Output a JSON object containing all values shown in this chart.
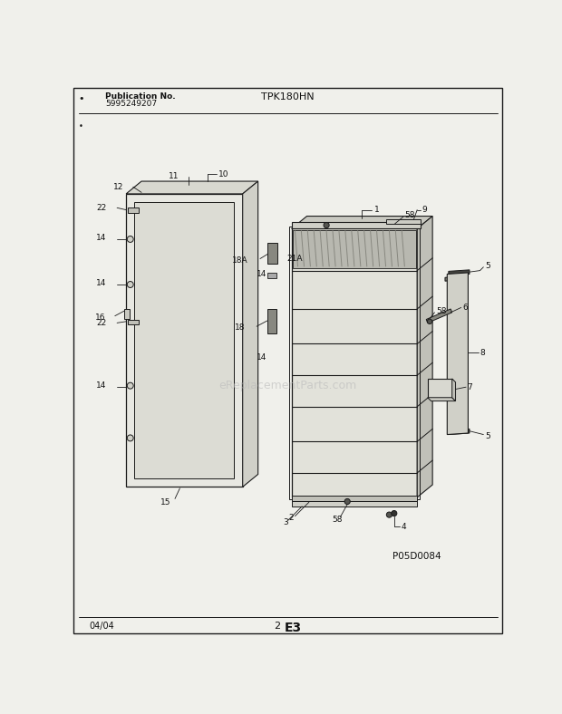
{
  "title": "TPK180HN",
  "pub_label": "Publication No.",
  "pub_number": "5995249207",
  "diagram_code": "P05D0084",
  "page_number": "2",
  "page_letter": "E3",
  "date": "04/04",
  "bg_color": "#f0f0eb",
  "line_color": "#1a1a1a",
  "text_color": "#111111",
  "watermark": "eReplacementParts.com"
}
